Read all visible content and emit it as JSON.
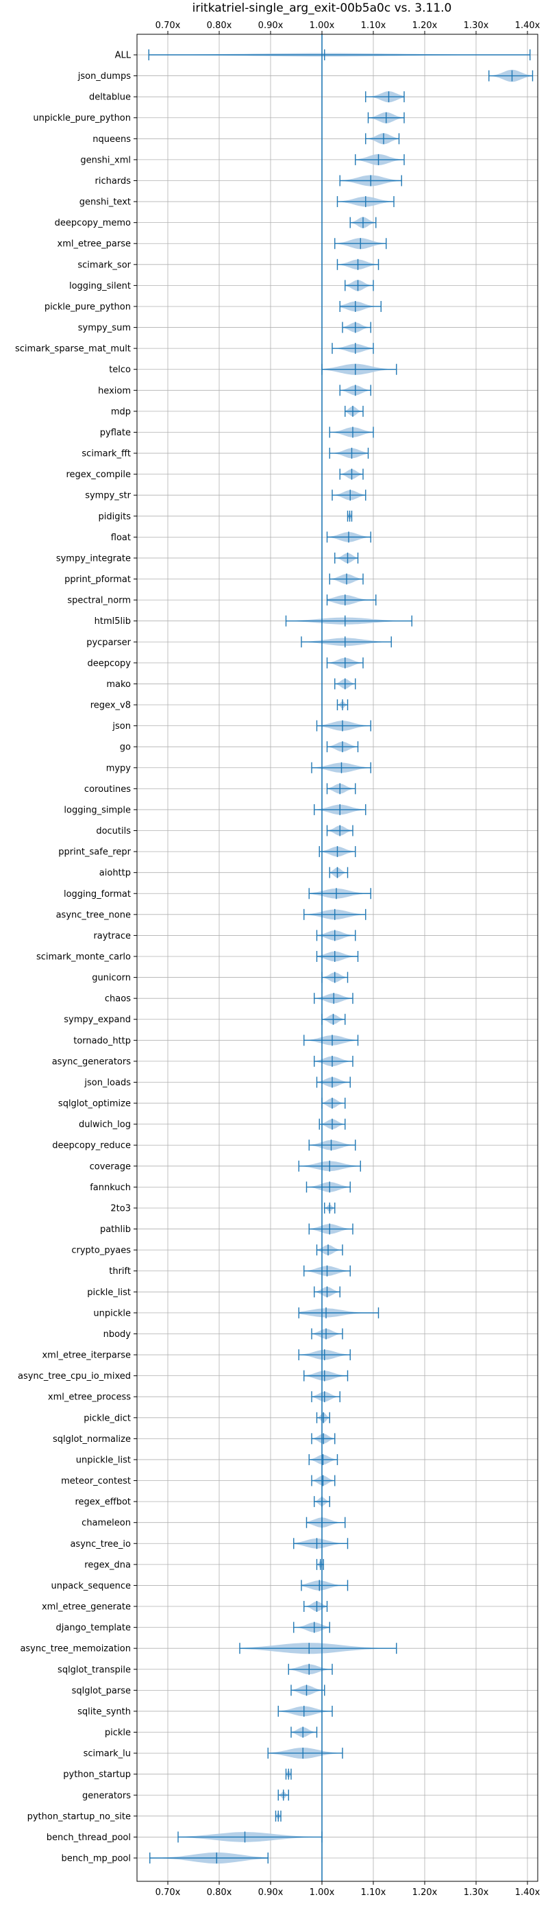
{
  "chart_data": {
    "type": "violin",
    "title": "iritkatriel-single_arg_exit-00b5a0c vs. 3.11.0",
    "xlabel": "",
    "ylabel": "",
    "x_tick_values": [
      0.7,
      0.8,
      0.9,
      1.0,
      1.1,
      1.2,
      1.3,
      1.4
    ],
    "x_tick_labels": [
      "0.70x",
      "0.80x",
      "0.90x",
      "1.00x",
      "1.10x",
      "1.20x",
      "1.30x",
      "1.40x"
    ],
    "xlim": [
      0.64,
      1.42
    ],
    "reference_line": 1.0,
    "grid": true,
    "color": "#1f77b4",
    "fill_color": "#a8c8e4",
    "series": [
      {
        "name": "ALL",
        "min": 0.663,
        "max": 1.405,
        "median": 1.005,
        "width": 0.08
      },
      {
        "name": "json_dumps",
        "min": 1.325,
        "max": 1.41,
        "median": 1.37,
        "width": 0.6
      },
      {
        "name": "deltablue",
        "min": 1.085,
        "max": 1.16,
        "median": 1.13,
        "width": 0.55
      },
      {
        "name": "unpickle_pure_python",
        "min": 1.09,
        "max": 1.16,
        "median": 1.125,
        "width": 0.55
      },
      {
        "name": "nqueens",
        "min": 1.085,
        "max": 1.15,
        "median": 1.12,
        "width": 0.55
      },
      {
        "name": "genshi_xml",
        "min": 1.065,
        "max": 1.16,
        "median": 1.11,
        "width": 0.55
      },
      {
        "name": "richards",
        "min": 1.035,
        "max": 1.155,
        "median": 1.095,
        "width": 0.55
      },
      {
        "name": "genshi_text",
        "min": 1.03,
        "max": 1.14,
        "median": 1.085,
        "width": 0.5
      },
      {
        "name": "deepcopy_memo",
        "min": 1.055,
        "max": 1.105,
        "median": 1.08,
        "width": 0.55
      },
      {
        "name": "xml_etree_parse",
        "min": 1.025,
        "max": 1.125,
        "median": 1.075,
        "width": 0.55
      },
      {
        "name": "scimark_sor",
        "min": 1.03,
        "max": 1.11,
        "median": 1.07,
        "width": 0.5
      },
      {
        "name": "logging_silent",
        "min": 1.045,
        "max": 1.1,
        "median": 1.07,
        "width": 0.55
      },
      {
        "name": "pickle_pure_python",
        "min": 1.035,
        "max": 1.115,
        "median": 1.065,
        "width": 0.5
      },
      {
        "name": "sympy_sum",
        "min": 1.04,
        "max": 1.095,
        "median": 1.065,
        "width": 0.5
      },
      {
        "name": "scimark_sparse_mat_mult",
        "min": 1.02,
        "max": 1.1,
        "median": 1.065,
        "width": 0.45
      },
      {
        "name": "telco",
        "min": 1.0,
        "max": 1.145,
        "median": 1.065,
        "width": 0.55
      },
      {
        "name": "hexiom",
        "min": 1.035,
        "max": 1.095,
        "median": 1.065,
        "width": 0.5
      },
      {
        "name": "mdp",
        "min": 1.045,
        "max": 1.08,
        "median": 1.06,
        "width": 0.5
      },
      {
        "name": "pyflate",
        "min": 1.015,
        "max": 1.1,
        "median": 1.06,
        "width": 0.5
      },
      {
        "name": "scimark_fft",
        "min": 1.015,
        "max": 1.09,
        "median": 1.058,
        "width": 0.5
      },
      {
        "name": "regex_compile",
        "min": 1.035,
        "max": 1.08,
        "median": 1.058,
        "width": 0.5
      },
      {
        "name": "sympy_str",
        "min": 1.02,
        "max": 1.085,
        "median": 1.055,
        "width": 0.5
      },
      {
        "name": "pidigits",
        "min": 1.05,
        "max": 1.058,
        "median": 1.054,
        "width": 0.3
      },
      {
        "name": "float",
        "min": 1.01,
        "max": 1.095,
        "median": 1.052,
        "width": 0.5
      },
      {
        "name": "sympy_integrate",
        "min": 1.025,
        "max": 1.07,
        "median": 1.05,
        "width": 0.5
      },
      {
        "name": "pprint_pformat",
        "min": 1.015,
        "max": 1.08,
        "median": 1.048,
        "width": 0.5
      },
      {
        "name": "spectral_norm",
        "min": 1.01,
        "max": 1.105,
        "median": 1.045,
        "width": 0.5
      },
      {
        "name": "html5lib",
        "min": 0.93,
        "max": 1.175,
        "median": 1.045,
        "width": 0.35
      },
      {
        "name": "pycparser",
        "min": 0.96,
        "max": 1.135,
        "median": 1.045,
        "width": 0.4
      },
      {
        "name": "deepcopy",
        "min": 1.01,
        "max": 1.08,
        "median": 1.045,
        "width": 0.5
      },
      {
        "name": "mako",
        "min": 1.025,
        "max": 1.065,
        "median": 1.045,
        "width": 0.5
      },
      {
        "name": "regex_v8",
        "min": 1.03,
        "max": 1.05,
        "median": 1.04,
        "width": 0.35
      },
      {
        "name": "json",
        "min": 0.99,
        "max": 1.095,
        "median": 1.04,
        "width": 0.5
      },
      {
        "name": "go",
        "min": 1.01,
        "max": 1.07,
        "median": 1.04,
        "width": 0.5
      },
      {
        "name": "mypy",
        "min": 0.98,
        "max": 1.095,
        "median": 1.038,
        "width": 0.5
      },
      {
        "name": "coroutines",
        "min": 1.01,
        "max": 1.065,
        "median": 1.035,
        "width": 0.5
      },
      {
        "name": "logging_simple",
        "min": 0.985,
        "max": 1.085,
        "median": 1.035,
        "width": 0.5
      },
      {
        "name": "docutils",
        "min": 1.01,
        "max": 1.06,
        "median": 1.035,
        "width": 0.5
      },
      {
        "name": "pprint_safe_repr",
        "min": 0.995,
        "max": 1.065,
        "median": 1.03,
        "width": 0.5
      },
      {
        "name": "aiohttp",
        "min": 1.015,
        "max": 1.05,
        "median": 1.03,
        "width": 0.5
      },
      {
        "name": "logging_format",
        "min": 0.975,
        "max": 1.095,
        "median": 1.028,
        "width": 0.5
      },
      {
        "name": "async_tree_none",
        "min": 0.965,
        "max": 1.085,
        "median": 1.025,
        "width": 0.5
      },
      {
        "name": "raytrace",
        "min": 0.99,
        "max": 1.065,
        "median": 1.025,
        "width": 0.5
      },
      {
        "name": "scimark_monte_carlo",
        "min": 0.99,
        "max": 1.07,
        "median": 1.025,
        "width": 0.5
      },
      {
        "name": "gunicorn",
        "min": 1.0,
        "max": 1.05,
        "median": 1.025,
        "width": 0.5
      },
      {
        "name": "chaos",
        "min": 0.985,
        "max": 1.06,
        "median": 1.023,
        "width": 0.5
      },
      {
        "name": "sympy_expand",
        "min": 1.0,
        "max": 1.045,
        "median": 1.022,
        "width": 0.5
      },
      {
        "name": "tornado_http",
        "min": 0.965,
        "max": 1.07,
        "median": 1.02,
        "width": 0.5
      },
      {
        "name": "async_generators",
        "min": 0.985,
        "max": 1.06,
        "median": 1.02,
        "width": 0.5
      },
      {
        "name": "json_loads",
        "min": 0.99,
        "max": 1.055,
        "median": 1.02,
        "width": 0.5
      },
      {
        "name": "sqlglot_optimize",
        "min": 1.0,
        "max": 1.045,
        "median": 1.02,
        "width": 0.5
      },
      {
        "name": "dulwich_log",
        "min": 0.995,
        "max": 1.045,
        "median": 1.02,
        "width": 0.5
      },
      {
        "name": "deepcopy_reduce",
        "min": 0.975,
        "max": 1.065,
        "median": 1.018,
        "width": 0.5
      },
      {
        "name": "coverage",
        "min": 0.955,
        "max": 1.075,
        "median": 1.015,
        "width": 0.5
      },
      {
        "name": "fannkuch",
        "min": 0.97,
        "max": 1.055,
        "median": 1.015,
        "width": 0.5
      },
      {
        "name": "2to3",
        "min": 1.005,
        "max": 1.025,
        "median": 1.015,
        "width": 0.35
      },
      {
        "name": "pathlib",
        "min": 0.975,
        "max": 1.06,
        "median": 1.015,
        "width": 0.5
      },
      {
        "name": "crypto_pyaes",
        "min": 0.99,
        "max": 1.04,
        "median": 1.012,
        "width": 0.5
      },
      {
        "name": "thrift",
        "min": 0.965,
        "max": 1.055,
        "median": 1.01,
        "width": 0.5
      },
      {
        "name": "pickle_list",
        "min": 0.985,
        "max": 1.035,
        "median": 1.01,
        "width": 0.5
      },
      {
        "name": "unpickle",
        "min": 0.955,
        "max": 1.11,
        "median": 1.008,
        "width": 0.45
      },
      {
        "name": "nbody",
        "min": 0.98,
        "max": 1.04,
        "median": 1.008,
        "width": 0.5
      },
      {
        "name": "xml_etree_iterparse",
        "min": 0.955,
        "max": 1.055,
        "median": 1.005,
        "width": 0.5
      },
      {
        "name": "async_tree_cpu_io_mixed",
        "min": 0.965,
        "max": 1.05,
        "median": 1.005,
        "width": 0.5
      },
      {
        "name": "xml_etree_process",
        "min": 0.98,
        "max": 1.035,
        "median": 1.005,
        "width": 0.5
      },
      {
        "name": "pickle_dict",
        "min": 0.99,
        "max": 1.015,
        "median": 1.003,
        "width": 0.5
      },
      {
        "name": "sqlglot_normalize",
        "min": 0.98,
        "max": 1.025,
        "median": 1.003,
        "width": 0.5
      },
      {
        "name": "unpickle_list",
        "min": 0.975,
        "max": 1.03,
        "median": 1.002,
        "width": 0.5
      },
      {
        "name": "meteor_contest",
        "min": 0.98,
        "max": 1.025,
        "median": 1.002,
        "width": 0.5
      },
      {
        "name": "regex_effbot",
        "min": 0.985,
        "max": 1.015,
        "median": 1.0,
        "width": 0.45
      },
      {
        "name": "chameleon",
        "min": 0.97,
        "max": 1.045,
        "median": 1.0,
        "width": 0.5
      },
      {
        "name": "async_tree_io",
        "min": 0.945,
        "max": 1.05,
        "median": 0.99,
        "width": 0.5
      },
      {
        "name": "regex_dna",
        "min": 0.99,
        "max": 1.003,
        "median": 0.997,
        "width": 0.35
      },
      {
        "name": "unpack_sequence",
        "min": 0.96,
        "max": 1.05,
        "median": 0.995,
        "width": 0.5
      },
      {
        "name": "xml_etree_generate",
        "min": 0.965,
        "max": 1.01,
        "median": 0.99,
        "width": 0.5
      },
      {
        "name": "django_template",
        "min": 0.945,
        "max": 1.015,
        "median": 0.985,
        "width": 0.5
      },
      {
        "name": "async_tree_memoization",
        "min": 0.84,
        "max": 1.145,
        "median": 0.975,
        "width": 0.55
      },
      {
        "name": "sqlglot_transpile",
        "min": 0.935,
        "max": 1.02,
        "median": 0.975,
        "width": 0.5
      },
      {
        "name": "sqlglot_parse",
        "min": 0.94,
        "max": 1.005,
        "median": 0.97,
        "width": 0.5
      },
      {
        "name": "sqlite_synth",
        "min": 0.915,
        "max": 1.02,
        "median": 0.965,
        "width": 0.5
      },
      {
        "name": "pickle",
        "min": 0.94,
        "max": 0.99,
        "median": 0.963,
        "width": 0.5
      },
      {
        "name": "scimark_lu",
        "min": 0.895,
        "max": 1.04,
        "median": 0.963,
        "width": 0.55
      },
      {
        "name": "python_startup",
        "min": 0.93,
        "max": 0.94,
        "median": 0.935,
        "width": 0.35
      },
      {
        "name": "generators",
        "min": 0.915,
        "max": 0.935,
        "median": 0.925,
        "width": 0.35
      },
      {
        "name": "python_startup_no_site",
        "min": 0.91,
        "max": 0.92,
        "median": 0.915,
        "width": 0.3
      },
      {
        "name": "bench_thread_pool",
        "min": 0.72,
        "max": 1.0,
        "median": 0.85,
        "width": 0.5
      },
      {
        "name": "bench_mp_pool",
        "min": 0.665,
        "max": 0.895,
        "median": 0.795,
        "width": 0.55
      }
    ]
  }
}
